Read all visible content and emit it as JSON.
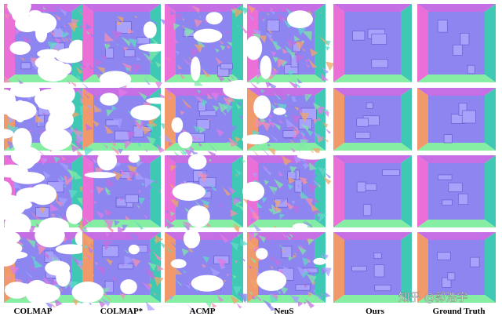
{
  "columns": [
    "COLMAP",
    "COLMAP*",
    "ACMP",
    "NeuS",
    "Ours",
    "Ground Truth"
  ],
  "watermark": "知乎 @郭浩宇"
}
